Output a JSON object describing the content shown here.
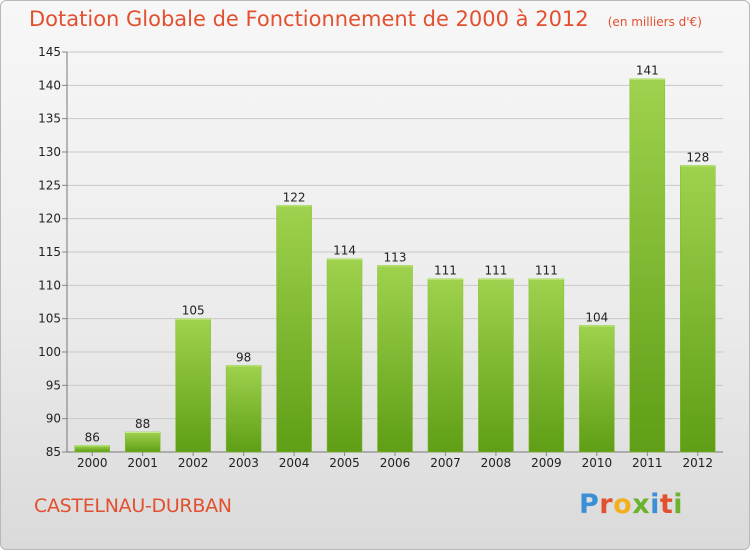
{
  "header": {
    "title": "Dotation Globale de Fonctionnement de 2000 à 2012",
    "subtitle": "(en milliers d'€)"
  },
  "footer": {
    "commune": "CASTELNAU-DURBAN",
    "logo": {
      "letters": [
        "P",
        "r",
        "o",
        "x",
        "i",
        "t",
        "i"
      ],
      "colors": [
        "#3a8fd6",
        "#e2502f",
        "#f2b01e",
        "#6bb32e",
        "#3a8fd6",
        "#e2502f",
        "#6bb32e"
      ]
    }
  },
  "colors": {
    "title": "#e2502f",
    "bar_top": "#9fd24e",
    "bar_bottom": "#5f9e16",
    "gridline": "#c8c8c8"
  },
  "chart_data": {
    "type": "bar",
    "title": "Dotation Globale de Fonctionnement de 2000 à 2012",
    "subtitle": "(en milliers d'€)",
    "categories": [
      "2000",
      "2001",
      "2002",
      "2003",
      "2004",
      "2005",
      "2006",
      "2007",
      "2008",
      "2009",
      "2010",
      "2011",
      "2012"
    ],
    "values": [
      86,
      88,
      105,
      98,
      122,
      114,
      113,
      111,
      111,
      111,
      104,
      141,
      128
    ],
    "ylim": [
      85,
      145
    ],
    "yticks": [
      85,
      90,
      95,
      100,
      105,
      110,
      115,
      120,
      125,
      130,
      135,
      140,
      145
    ],
    "grid": true,
    "xlabel": "",
    "ylabel": ""
  }
}
